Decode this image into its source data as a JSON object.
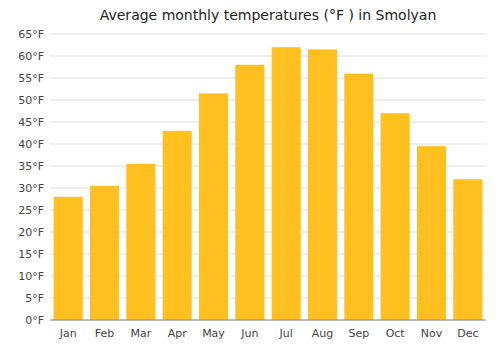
{
  "chart_data": {
    "type": "bar",
    "title": "Average monthly temperatures (°F ) in Smolyan",
    "categories": [
      "Jan",
      "Feb",
      "Mar",
      "Apr",
      "May",
      "Jun",
      "Jul",
      "Aug",
      "Sep",
      "Oct",
      "Nov",
      "Dec"
    ],
    "values": [
      28,
      30.5,
      35.5,
      43,
      51.5,
      58,
      62,
      61.5,
      56,
      47,
      39.5,
      32
    ],
    "color": "#FFC020",
    "ylim": [
      0,
      65
    ],
    "yticks": [
      {
        "value": 0,
        "label": "0°F"
      },
      {
        "value": 5,
        "label": "5°F"
      },
      {
        "value": 10,
        "label": "10°F"
      },
      {
        "value": 15,
        "label": "15°F"
      },
      {
        "value": 20,
        "label": "20°F"
      },
      {
        "value": 25,
        "label": "25°F"
      },
      {
        "value": 30,
        "label": "30°F"
      },
      {
        "value": 35,
        "label": "35°F"
      },
      {
        "value": 40,
        "label": "40°F"
      },
      {
        "value": 45,
        "label": "45°F"
      },
      {
        "value": 50,
        "label": "50°F"
      },
      {
        "value": 55,
        "label": "55°F"
      },
      {
        "value": 60,
        "label": "60°F"
      },
      {
        "value": 65,
        "label": "65°F"
      }
    ],
    "grid": true
  }
}
